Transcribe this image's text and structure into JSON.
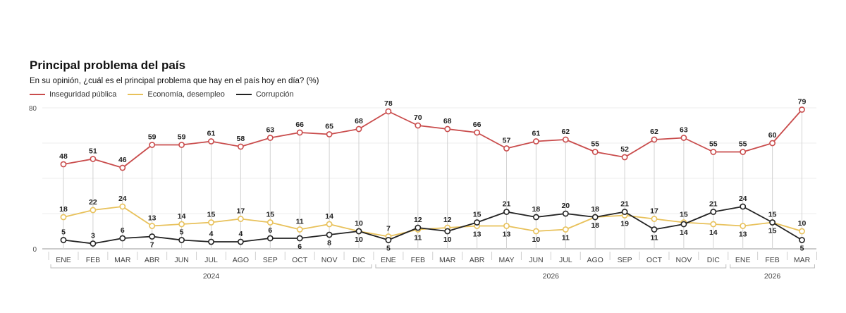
{
  "chart_data": {
    "type": "line",
    "title": "Principal problema del país",
    "subtitle": "En su opinión, ¿cuál es el principal problema que hay en el país hoy en día? (%)",
    "xlabel": "",
    "ylabel": "",
    "ylim": [
      0,
      80
    ],
    "yticks": [
      "80",
      "0"
    ],
    "categories": [
      "ENE",
      "FEB",
      "MAR",
      "ABR",
      "JUN",
      "JUL",
      "AGO",
      "SEP",
      "OCT",
      "NOV",
      "DIC",
      "ENE",
      "FEB",
      "MAR",
      "ABR",
      "MAY",
      "JUN",
      "JUL",
      "AGO",
      "SEP",
      "OCT",
      "NOV",
      "DIC",
      "ENE",
      "FEB",
      "MAR"
    ],
    "year_groups": [
      {
        "label": "2024",
        "start": 0,
        "end": 10
      },
      {
        "label": "2026",
        "start": 11,
        "end": 22
      },
      {
        "label": "2026",
        "start": 23,
        "end": 25
      }
    ],
    "series": [
      {
        "name": "Inseguridad pública",
        "color": "#c94c4c",
        "values": [
          48,
          51,
          46,
          59,
          59,
          61,
          58,
          63,
          66,
          65,
          68,
          78,
          70,
          68,
          66,
          57,
          61,
          62,
          55,
          52,
          62,
          63,
          55,
          55,
          60,
          79
        ],
        "label_pos": [
          "a",
          "a",
          "a",
          "a",
          "a",
          "a",
          "a",
          "a",
          "a",
          "a",
          "a",
          "a",
          "a",
          "a",
          "a",
          "a",
          "a",
          "a",
          "a",
          "a",
          "a",
          "a",
          "a",
          "a",
          "a",
          "a"
        ]
      },
      {
        "name": "Economía, desempleo",
        "color": "#e8c15a",
        "values": [
          18,
          22,
          24,
          13,
          14,
          15,
          17,
          15,
          11,
          14,
          10,
          7,
          11,
          12,
          13,
          13,
          10,
          11,
          18,
          19,
          17,
          15,
          14,
          13,
          15,
          10
        ],
        "label_pos": [
          "a",
          "a",
          "a",
          "a",
          "a",
          "a",
          "a",
          "a",
          "a",
          "a",
          "a",
          "a",
          "b",
          "a",
          "b",
          "b",
          "b",
          "b",
          "b",
          "b",
          "a",
          "a",
          "b",
          "b",
          "b",
          "a"
        ]
      },
      {
        "name": "Corrupción",
        "color": "#222222",
        "values": [
          5,
          3,
          6,
          7,
          5,
          4,
          4,
          6,
          6,
          8,
          10,
          5,
          12,
          10,
          15,
          21,
          18,
          20,
          18,
          21,
          11,
          14,
          21,
          24,
          15,
          5
        ],
        "label_pos": [
          "a",
          "a",
          "a",
          "b",
          "a",
          "a",
          "a",
          "a",
          "b",
          "b",
          "b",
          "b",
          "a",
          "b",
          "a",
          "a",
          "a",
          "a",
          "a",
          "a",
          "b",
          "b",
          "a",
          "a",
          "a",
          "b"
        ]
      }
    ],
    "legend_position": "top-left",
    "grid": true
  }
}
